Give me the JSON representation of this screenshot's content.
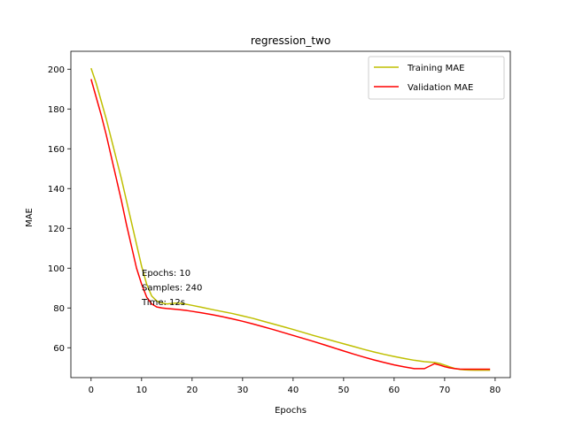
{
  "chart_data": {
    "type": "line",
    "title": "regression_two",
    "xlabel": "Epochs",
    "ylabel": "MAE",
    "xlim": [
      -4,
      83
    ],
    "ylim": [
      45,
      209
    ],
    "xticks": [
      0,
      10,
      20,
      30,
      40,
      50,
      60,
      70,
      80
    ],
    "yticks": [
      60,
      80,
      100,
      120,
      140,
      160,
      180,
      200
    ],
    "grid": false,
    "legend_position": "top-right",
    "series": [
      {
        "name": "Training MAE",
        "color": "#bfbf00",
        "x": [
          0,
          1,
          2,
          3,
          4,
          5,
          6,
          7,
          8,
          9,
          10,
          11,
          12,
          13,
          14,
          15,
          16,
          17,
          18,
          19,
          20,
          22,
          24,
          26,
          28,
          30,
          32,
          34,
          36,
          38,
          40,
          42,
          44,
          46,
          48,
          50,
          52,
          54,
          56,
          58,
          60,
          62,
          64,
          66,
          68,
          69,
          70,
          71,
          72,
          73,
          74,
          75,
          76,
          77,
          78,
          79
        ],
        "values": [
          200.5,
          193,
          184,
          175,
          165,
          155,
          145,
          134,
          123,
          112,
          101,
          92,
          86,
          83.5,
          82.5,
          82,
          82.3,
          82.5,
          82.2,
          81.8,
          81.3,
          80.3,
          79.2,
          78.2,
          77.2,
          76,
          74.8,
          73.4,
          72,
          70.6,
          69.2,
          67.7,
          66.2,
          64.8,
          63.4,
          62,
          60.6,
          59.2,
          57.9,
          56.7,
          55.6,
          54.6,
          53.7,
          53,
          52.6,
          52.1,
          51.3,
          50.4,
          49.6,
          49.1,
          48.9,
          48.8,
          48.7,
          48.7,
          48.7,
          48.7
        ]
      },
      {
        "name": "Validation MAE",
        "color": "#ff0000",
        "x": [
          0,
          1,
          2,
          3,
          4,
          5,
          6,
          7,
          8,
          9,
          10,
          11,
          12,
          13,
          14,
          15,
          16,
          17,
          18,
          19,
          20,
          22,
          24,
          26,
          28,
          30,
          32,
          34,
          36,
          38,
          40,
          42,
          44,
          46,
          48,
          50,
          52,
          54,
          56,
          58,
          60,
          62,
          64,
          66,
          68,
          69,
          70,
          71,
          72,
          73,
          74,
          75,
          76,
          77,
          78,
          79
        ],
        "values": [
          195,
          186,
          177,
          167,
          156,
          145,
          134,
          122,
          111,
          100,
          92,
          85.5,
          82,
          80.5,
          80,
          79.7,
          79.5,
          79.3,
          79,
          78.7,
          78.3,
          77.5,
          76.6,
          75.6,
          74.5,
          73.3,
          72,
          70.6,
          69.2,
          67.7,
          66.2,
          64.7,
          63.2,
          61.6,
          60,
          58.4,
          56.8,
          55.3,
          53.9,
          52.6,
          51.4,
          50.4,
          49.5,
          49.5,
          52,
          51.3,
          50.5,
          49.9,
          49.5,
          49.3,
          49.2,
          49.2,
          49.2,
          49.2,
          49.2,
          49.2
        ]
      }
    ],
    "annotations": [
      "Epochs: 10",
      "Samples: 240",
      "Time: 12s"
    ]
  }
}
